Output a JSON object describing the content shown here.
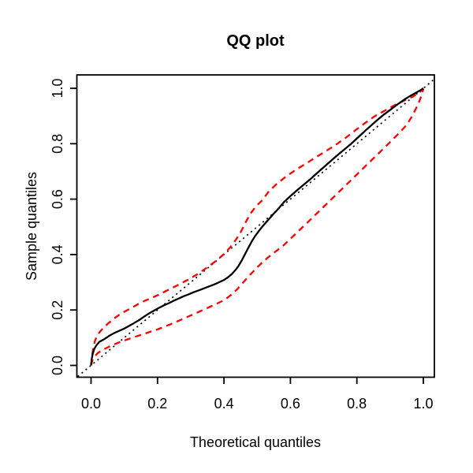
{
  "title": "QQ plot",
  "axes": {
    "x": {
      "label": "Theoretical quantiles",
      "tick_values": [
        0,
        0.2,
        0.4,
        0.6,
        0.8,
        1.0
      ],
      "tick_labels": [
        "0.0",
        "0.2",
        "0.4",
        "0.6",
        "0.8",
        "1.0"
      ],
      "range": [
        0,
        1
      ]
    },
    "y": {
      "label": "Sample quantiles",
      "tick_values": [
        0,
        0.2,
        0.4,
        0.6,
        0.8,
        1.0
      ],
      "tick_labels": [
        "0.0",
        "0.2",
        "0.4",
        "0.6",
        "0.8",
        "1.0"
      ],
      "range": [
        0,
        1
      ]
    }
  },
  "colors": {
    "sample_line": "#000000",
    "confidence_band": "#ff0000",
    "reference_line": "#000000",
    "background": "#ffffff",
    "frame": "#000000"
  },
  "chart_data": {
    "type": "line",
    "title": "QQ plot",
    "xlabel": "Theoretical quantiles",
    "ylabel": "Sample quantiles",
    "xlim": [
      0,
      1
    ],
    "ylim": [
      0,
      1
    ],
    "grid": false,
    "legend": "none",
    "series": [
      {
        "name": "sample-quantiles",
        "style": "solid",
        "color": "#000000",
        "width": 2.3,
        "points": [
          [
            0,
            0
          ],
          [
            0.002,
            0.022
          ],
          [
            0.005,
            0.042
          ],
          [
            0.01,
            0.06
          ],
          [
            0.016,
            0.072
          ],
          [
            0.025,
            0.085
          ],
          [
            0.04,
            0.095
          ],
          [
            0.055,
            0.107
          ],
          [
            0.07,
            0.117
          ],
          [
            0.085,
            0.125
          ],
          [
            0.1,
            0.133
          ],
          [
            0.115,
            0.143
          ],
          [
            0.13,
            0.153
          ],
          [
            0.145,
            0.164
          ],
          [
            0.16,
            0.176
          ],
          [
            0.175,
            0.188
          ],
          [
            0.19,
            0.198
          ],
          [
            0.205,
            0.208
          ],
          [
            0.22,
            0.217
          ],
          [
            0.235,
            0.225
          ],
          [
            0.25,
            0.234
          ],
          [
            0.265,
            0.242
          ],
          [
            0.28,
            0.25
          ],
          [
            0.295,
            0.257
          ],
          [
            0.31,
            0.265
          ],
          [
            0.325,
            0.271
          ],
          [
            0.34,
            0.278
          ],
          [
            0.355,
            0.285
          ],
          [
            0.37,
            0.292
          ],
          [
            0.385,
            0.3
          ],
          [
            0.4,
            0.308
          ],
          [
            0.412,
            0.318
          ],
          [
            0.424,
            0.33
          ],
          [
            0.434,
            0.343
          ],
          [
            0.444,
            0.359
          ],
          [
            0.454,
            0.38
          ],
          [
            0.464,
            0.403
          ],
          [
            0.474,
            0.426
          ],
          [
            0.484,
            0.448
          ],
          [
            0.494,
            0.467
          ],
          [
            0.504,
            0.483
          ],
          [
            0.514,
            0.499
          ],
          [
            0.524,
            0.513
          ],
          [
            0.537,
            0.53
          ],
          [
            0.55,
            0.548
          ],
          [
            0.565,
            0.567
          ],
          [
            0.58,
            0.589
          ],
          [
            0.6,
            0.611
          ],
          [
            0.62,
            0.632
          ],
          [
            0.64,
            0.652
          ],
          [
            0.66,
            0.672
          ],
          [
            0.68,
            0.694
          ],
          [
            0.7,
            0.715
          ],
          [
            0.72,
            0.736
          ],
          [
            0.74,
            0.757
          ],
          [
            0.76,
            0.777
          ],
          [
            0.78,
            0.797
          ],
          [
            0.8,
            0.819
          ],
          [
            0.82,
            0.841
          ],
          [
            0.84,
            0.863
          ],
          [
            0.86,
            0.884
          ],
          [
            0.88,
            0.904
          ],
          [
            0.9,
            0.922
          ],
          [
            0.92,
            0.94
          ],
          [
            0.94,
            0.957
          ],
          [
            0.96,
            0.972
          ],
          [
            0.975,
            0.982
          ],
          [
            0.99,
            0.992
          ],
          [
            1,
            1
          ]
        ]
      },
      {
        "name": "upper-confidence-band",
        "style": "dashed",
        "color": "#ff0000",
        "width": 2.3,
        "points": [
          [
            0,
            0
          ],
          [
            0.003,
            0.035
          ],
          [
            0.007,
            0.065
          ],
          [
            0.012,
            0.09
          ],
          [
            0.02,
            0.112
          ],
          [
            0.035,
            0.133
          ],
          [
            0.05,
            0.15
          ],
          [
            0.07,
            0.17
          ],
          [
            0.09,
            0.187
          ],
          [
            0.11,
            0.2
          ],
          [
            0.13,
            0.213
          ],
          [
            0.15,
            0.227
          ],
          [
            0.175,
            0.24
          ],
          [
            0.2,
            0.253
          ],
          [
            0.23,
            0.271
          ],
          [
            0.26,
            0.289
          ],
          [
            0.29,
            0.308
          ],
          [
            0.32,
            0.329
          ],
          [
            0.35,
            0.354
          ],
          [
            0.38,
            0.381
          ],
          [
            0.4,
            0.402
          ],
          [
            0.42,
            0.428
          ],
          [
            0.435,
            0.452
          ],
          [
            0.45,
            0.48
          ],
          [
            0.465,
            0.516
          ],
          [
            0.48,
            0.548
          ],
          [
            0.495,
            0.572
          ],
          [
            0.515,
            0.596
          ],
          [
            0.535,
            0.628
          ],
          [
            0.56,
            0.656
          ],
          [
            0.585,
            0.68
          ],
          [
            0.615,
            0.705
          ],
          [
            0.645,
            0.727
          ],
          [
            0.675,
            0.75
          ],
          [
            0.705,
            0.772
          ],
          [
            0.735,
            0.795
          ],
          [
            0.765,
            0.82
          ],
          [
            0.795,
            0.848
          ],
          [
            0.825,
            0.875
          ],
          [
            0.855,
            0.9
          ],
          [
            0.885,
            0.92
          ],
          [
            0.915,
            0.94
          ],
          [
            0.945,
            0.957
          ],
          [
            0.965,
            0.968
          ],
          [
            0.98,
            0.978
          ],
          [
            0.99,
            0.987
          ],
          [
            1,
            1
          ]
        ]
      },
      {
        "name": "lower-confidence-band",
        "style": "dashed",
        "color": "#ff0000",
        "width": 2.3,
        "points": [
          [
            0,
            0
          ],
          [
            0.004,
            0.018
          ],
          [
            0.01,
            0.032
          ],
          [
            0.02,
            0.044
          ],
          [
            0.035,
            0.056
          ],
          [
            0.055,
            0.068
          ],
          [
            0.08,
            0.081
          ],
          [
            0.11,
            0.094
          ],
          [
            0.14,
            0.106
          ],
          [
            0.17,
            0.118
          ],
          [
            0.2,
            0.13
          ],
          [
            0.23,
            0.144
          ],
          [
            0.26,
            0.159
          ],
          [
            0.29,
            0.175
          ],
          [
            0.32,
            0.191
          ],
          [
            0.35,
            0.207
          ],
          [
            0.375,
            0.221
          ],
          [
            0.4,
            0.235
          ],
          [
            0.42,
            0.253
          ],
          [
            0.44,
            0.275
          ],
          [
            0.46,
            0.302
          ],
          [
            0.48,
            0.329
          ],
          [
            0.5,
            0.354
          ],
          [
            0.52,
            0.377
          ],
          [
            0.54,
            0.397
          ],
          [
            0.56,
            0.415
          ],
          [
            0.58,
            0.434
          ],
          [
            0.6,
            0.457
          ],
          [
            0.62,
            0.48
          ],
          [
            0.65,
            0.514
          ],
          [
            0.68,
            0.549
          ],
          [
            0.71,
            0.584
          ],
          [
            0.74,
            0.619
          ],
          [
            0.77,
            0.654
          ],
          [
            0.8,
            0.689
          ],
          [
            0.83,
            0.724
          ],
          [
            0.86,
            0.759
          ],
          [
            0.89,
            0.794
          ],
          [
            0.91,
            0.818
          ],
          [
            0.93,
            0.842
          ],
          [
            0.95,
            0.868
          ],
          [
            0.965,
            0.897
          ],
          [
            0.978,
            0.927
          ],
          [
            0.988,
            0.953
          ],
          [
            0.995,
            0.976
          ],
          [
            1,
            0.998
          ]
        ]
      },
      {
        "name": "identity-reference",
        "style": "dotted",
        "color": "#000000",
        "width": 1.7,
        "points": [
          [
            -0.04,
            -0.04
          ],
          [
            1.033,
            1.033
          ]
        ]
      }
    ]
  }
}
